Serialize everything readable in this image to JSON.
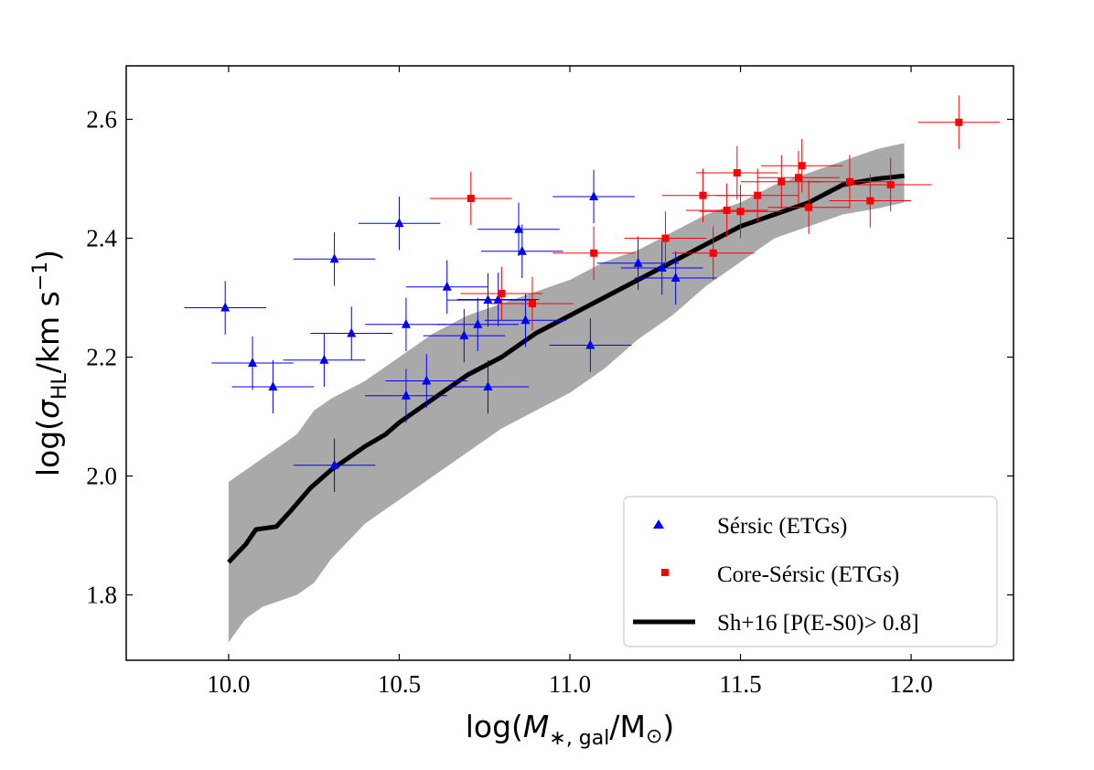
{
  "chart_data": {
    "type": "scatter",
    "xlim": [
      9.7,
      12.3
    ],
    "ylim": [
      1.69,
      2.69
    ],
    "xticks": [
      10.0,
      10.5,
      11.0,
      11.5,
      12.0
    ],
    "yticks": [
      1.8,
      2.0,
      2.2,
      2.4,
      2.6
    ],
    "xtick_labels": [
      "10.0",
      "10.5",
      "11.0",
      "11.5",
      "12.0"
    ],
    "ytick_labels": [
      "1.8",
      "2.0",
      "2.2",
      "2.4",
      "2.6"
    ],
    "xlabel": {
      "pre": "log(",
      "var": "M",
      "sub": "∗, gal",
      "post": "/M",
      "sun": "⊙",
      "close": ")"
    },
    "ylabel": {
      "pre": "log(",
      "var": "σ",
      "sub": "HL",
      "post": "/km s",
      "sup": "−1",
      "close": ")"
    },
    "legend_position": "lower-right",
    "legend": [
      {
        "label": "Sérsic (ETGs)",
        "marker": "triangle",
        "color": "#0000ff"
      },
      {
        "label": "Core-Sérsic (ETGs)",
        "marker": "square",
        "color": "#ff0000"
      },
      {
        "label": "Sh+16 [P(E-S0)> 0.8]",
        "marker": "line",
        "color": "#000000"
      }
    ],
    "band": {
      "name": "Sh+16 scatter",
      "color": "#a9a9a9",
      "x": [
        10.0,
        10.05,
        10.1,
        10.15,
        10.2,
        10.25,
        10.3,
        10.4,
        10.5,
        10.6,
        10.7,
        10.8,
        10.9,
        11.0,
        11.1,
        11.2,
        11.3,
        11.4,
        11.5,
        11.6,
        11.7,
        11.8,
        11.9,
        11.98
      ],
      "upper": [
        1.99,
        2.01,
        2.03,
        2.05,
        2.07,
        2.11,
        2.13,
        2.16,
        2.2,
        2.24,
        2.27,
        2.29,
        2.31,
        2.33,
        2.36,
        2.38,
        2.41,
        2.44,
        2.46,
        2.49,
        2.51,
        2.53,
        2.55,
        2.56
      ],
      "lower": [
        1.72,
        1.76,
        1.78,
        1.79,
        1.8,
        1.82,
        1.86,
        1.92,
        1.96,
        2.0,
        2.04,
        2.08,
        2.11,
        2.14,
        2.18,
        2.23,
        2.27,
        2.32,
        2.36,
        2.4,
        2.42,
        2.44,
        2.45,
        2.46
      ]
    },
    "series": [
      {
        "name": "Sh+16 [P(E-S0)> 0.8]",
        "type": "line",
        "color": "#000000",
        "x": [
          10.0,
          10.05,
          10.08,
          10.14,
          10.18,
          10.24,
          10.3,
          10.4,
          10.46,
          10.5,
          10.6,
          10.7,
          10.8,
          10.9,
          11.0,
          11.1,
          11.2,
          11.3,
          11.4,
          11.5,
          11.6,
          11.7,
          11.8,
          11.9,
          11.98
        ],
        "y": [
          1.855,
          1.885,
          1.91,
          1.915,
          1.94,
          1.98,
          2.01,
          2.05,
          2.07,
          2.09,
          2.13,
          2.17,
          2.2,
          2.24,
          2.27,
          2.3,
          2.33,
          2.36,
          2.39,
          2.42,
          2.44,
          2.46,
          2.49,
          2.5,
          2.505
        ]
      },
      {
        "name": "Sérsic (ETGs)",
        "type": "scatter",
        "marker": "triangle",
        "color": "#0000ff",
        "points": [
          {
            "x": 9.99,
            "y": 2.283,
            "xerr": 0.12,
            "yerr": 0.045
          },
          {
            "x": 10.07,
            "y": 2.19,
            "xerr": 0.12,
            "yerr": 0.045
          },
          {
            "x": 10.13,
            "y": 2.15,
            "xerr": 0.12,
            "yerr": 0.045
          },
          {
            "x": 10.28,
            "y": 2.195,
            "xerr": 0.12,
            "yerr": 0.045
          },
          {
            "x": 10.31,
            "y": 2.365,
            "xerr": 0.12,
            "yerr": 0.045
          },
          {
            "x": 10.31,
            "y": 2.018,
            "xerr": 0.12,
            "yerr": 0.045
          },
          {
            "x": 10.36,
            "y": 2.24,
            "xerr": 0.12,
            "yerr": 0.045
          },
          {
            "x": 10.5,
            "y": 2.425,
            "xerr": 0.12,
            "yerr": 0.045
          },
          {
            "x": 10.52,
            "y": 2.255,
            "xerr": 0.12,
            "yerr": 0.045
          },
          {
            "x": 10.52,
            "y": 2.135,
            "xerr": 0.12,
            "yerr": 0.045
          },
          {
            "x": 10.58,
            "y": 2.16,
            "xerr": 0.12,
            "yerr": 0.045
          },
          {
            "x": 10.64,
            "y": 2.318,
            "xerr": 0.12,
            "yerr": 0.045
          },
          {
            "x": 10.69,
            "y": 2.236,
            "xerr": 0.12,
            "yerr": 0.045
          },
          {
            "x": 10.73,
            "y": 2.255,
            "xerr": 0.12,
            "yerr": 0.045
          },
          {
            "x": 10.76,
            "y": 2.296,
            "xerr": 0.12,
            "yerr": 0.045
          },
          {
            "x": 10.76,
            "y": 2.15,
            "xerr": 0.12,
            "yerr": 0.045
          },
          {
            "x": 10.79,
            "y": 2.297,
            "xerr": 0.12,
            "yerr": 0.045
          },
          {
            "x": 10.85,
            "y": 2.415,
            "xerr": 0.12,
            "yerr": 0.045
          },
          {
            "x": 10.86,
            "y": 2.378,
            "xerr": 0.12,
            "yerr": 0.045
          },
          {
            "x": 10.87,
            "y": 2.262,
            "xerr": 0.12,
            "yerr": 0.045
          },
          {
            "x": 11.06,
            "y": 2.22,
            "xerr": 0.12,
            "yerr": 0.045
          },
          {
            "x": 11.07,
            "y": 2.47,
            "xerr": 0.12,
            "yerr": 0.045
          },
          {
            "x": 11.2,
            "y": 2.358,
            "xerr": 0.12,
            "yerr": 0.045
          },
          {
            "x": 11.27,
            "y": 2.35,
            "xerr": 0.12,
            "yerr": 0.045
          },
          {
            "x": 11.31,
            "y": 2.333,
            "xerr": 0.12,
            "yerr": 0.045
          }
        ]
      },
      {
        "name": "Core-Sérsic (ETGs)",
        "type": "scatter",
        "marker": "square",
        "color": "#ff0000",
        "points": [
          {
            "x": 10.71,
            "y": 2.467,
            "xerr": 0.12,
            "yerr": 0.045
          },
          {
            "x": 10.8,
            "y": 2.307,
            "xerr": 0.12,
            "yerr": 0.045
          },
          {
            "x": 10.89,
            "y": 2.29,
            "xerr": 0.12,
            "yerr": 0.045
          },
          {
            "x": 11.07,
            "y": 2.375,
            "xerr": 0.12,
            "yerr": 0.045
          },
          {
            "x": 11.28,
            "y": 2.4,
            "xerr": 0.12,
            "yerr": 0.045
          },
          {
            "x": 11.39,
            "y": 2.472,
            "xerr": 0.12,
            "yerr": 0.045
          },
          {
            "x": 11.42,
            "y": 2.375,
            "xerr": 0.12,
            "yerr": 0.045
          },
          {
            "x": 11.46,
            "y": 2.447,
            "xerr": 0.12,
            "yerr": 0.045
          },
          {
            "x": 11.49,
            "y": 2.51,
            "xerr": 0.12,
            "yerr": 0.045
          },
          {
            "x": 11.5,
            "y": 2.445,
            "xerr": 0.12,
            "yerr": 0.045
          },
          {
            "x": 11.55,
            "y": 2.472,
            "xerr": 0.12,
            "yerr": 0.045
          },
          {
            "x": 11.62,
            "y": 2.495,
            "xerr": 0.12,
            "yerr": 0.045
          },
          {
            "x": 11.67,
            "y": 2.502,
            "xerr": 0.12,
            "yerr": 0.045
          },
          {
            "x": 11.68,
            "y": 2.522,
            "xerr": 0.12,
            "yerr": 0.045
          },
          {
            "x": 11.7,
            "y": 2.452,
            "xerr": 0.12,
            "yerr": 0.045
          },
          {
            "x": 11.82,
            "y": 2.495,
            "xerr": 0.12,
            "yerr": 0.045
          },
          {
            "x": 11.88,
            "y": 2.463,
            "xerr": 0.12,
            "yerr": 0.045
          },
          {
            "x": 11.94,
            "y": 2.49,
            "xerr": 0.12,
            "yerr": 0.045
          },
          {
            "x": 12.14,
            "y": 2.595,
            "xerr": 0.12,
            "yerr": 0.045
          }
        ]
      }
    ]
  }
}
